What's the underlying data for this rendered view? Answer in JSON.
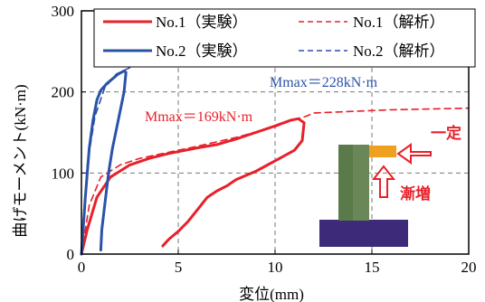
{
  "chart_data": {
    "type": "line",
    "xlabel": "変位(mm)",
    "ylabel": "曲げモーメント(kN·m)",
    "xlim": [
      0,
      20
    ],
    "ylim": [
      0,
      300
    ],
    "x_ticks": [
      "0",
      "5",
      "10",
      "15",
      "20"
    ],
    "y_ticks": [
      "0",
      "100",
      "200",
      "300"
    ],
    "grid": "dashed",
    "legend_position": "top-right",
    "colors": {
      "no1": "#e8202a",
      "no2": "#2a52a8",
      "rebar": "#f0a020"
    },
    "series": [
      {
        "name": "No.1（実験）",
        "style": "solid",
        "color": "#e8202a",
        "points": [
          [
            0,
            0
          ],
          [
            0.3,
            30
          ],
          [
            0.8,
            70
          ],
          [
            1.5,
            95
          ],
          [
            2.5,
            110
          ],
          [
            3.5,
            118
          ],
          [
            4.5,
            124
          ],
          [
            6,
            131
          ],
          [
            7,
            135
          ],
          [
            8,
            142
          ],
          [
            9,
            150
          ],
          [
            10,
            158
          ],
          [
            10.8,
            165
          ],
          [
            11.2,
            167
          ],
          [
            11.5,
            162
          ],
          [
            11.4,
            140
          ],
          [
            11,
            128
          ],
          [
            10,
            115
          ],
          [
            9,
            102
          ],
          [
            8,
            92
          ],
          [
            7.5,
            84
          ],
          [
            7,
            78
          ],
          [
            6.5,
            70
          ],
          [
            6,
            55
          ],
          [
            5.5,
            40
          ],
          [
            5,
            28
          ],
          [
            4.5,
            18
          ],
          [
            4.2,
            10
          ]
        ]
      },
      {
        "name": "No.1（解析）",
        "style": "dashed",
        "color": "#e8202a",
        "points": [
          [
            0,
            0
          ],
          [
            0.4,
            60
          ],
          [
            1,
            95
          ],
          [
            2,
            110
          ],
          [
            3,
            118
          ],
          [
            4,
            123
          ],
          [
            5,
            128
          ],
          [
            6,
            133
          ],
          [
            8,
            144
          ],
          [
            10,
            157
          ],
          [
            11,
            166
          ],
          [
            11.6,
            170
          ],
          [
            12,
            174
          ],
          [
            14,
            176
          ],
          [
            16,
            178
          ],
          [
            18,
            179
          ],
          [
            20,
            180
          ]
        ]
      },
      {
        "name": "No.2（実験）",
        "style": "solid",
        "color": "#2a52a8",
        "points": [
          [
            0,
            0
          ],
          [
            0.2,
            70
          ],
          [
            0.4,
            130
          ],
          [
            0.6,
            165
          ],
          [
            0.8,
            190
          ],
          [
            1.0,
            202
          ],
          [
            1.3,
            210
          ],
          [
            1.6,
            216
          ],
          [
            1.9,
            222
          ],
          [
            2.2,
            226
          ],
          [
            2.3,
            224
          ],
          [
            2.2,
            200
          ],
          [
            1.9,
            165
          ],
          [
            1.6,
            130
          ],
          [
            1.4,
            100
          ],
          [
            1.2,
            60
          ],
          [
            1.05,
            30
          ],
          [
            1.0,
            5
          ]
        ]
      },
      {
        "name": "No.2（解析）",
        "style": "dashed",
        "color": "#2a52a8",
        "points": [
          [
            0,
            0
          ],
          [
            0.3,
            110
          ],
          [
            0.7,
            170
          ],
          [
            1.2,
            205
          ],
          [
            1.8,
            222
          ],
          [
            2.5,
            230
          ],
          [
            3.5,
            235
          ],
          [
            5,
            237
          ],
          [
            7,
            238
          ],
          [
            8.5,
            238
          ]
        ]
      }
    ],
    "annotations": [
      {
        "text": "Mmax＝228kN·m",
        "color": "#2a52a8"
      },
      {
        "text": "Mmax＝169kN·m",
        "color": "#e8202a"
      },
      {
        "text": "一定",
        "color": "#e8202a"
      },
      {
        "text": "漸増",
        "color": "#e8202a"
      }
    ]
  }
}
